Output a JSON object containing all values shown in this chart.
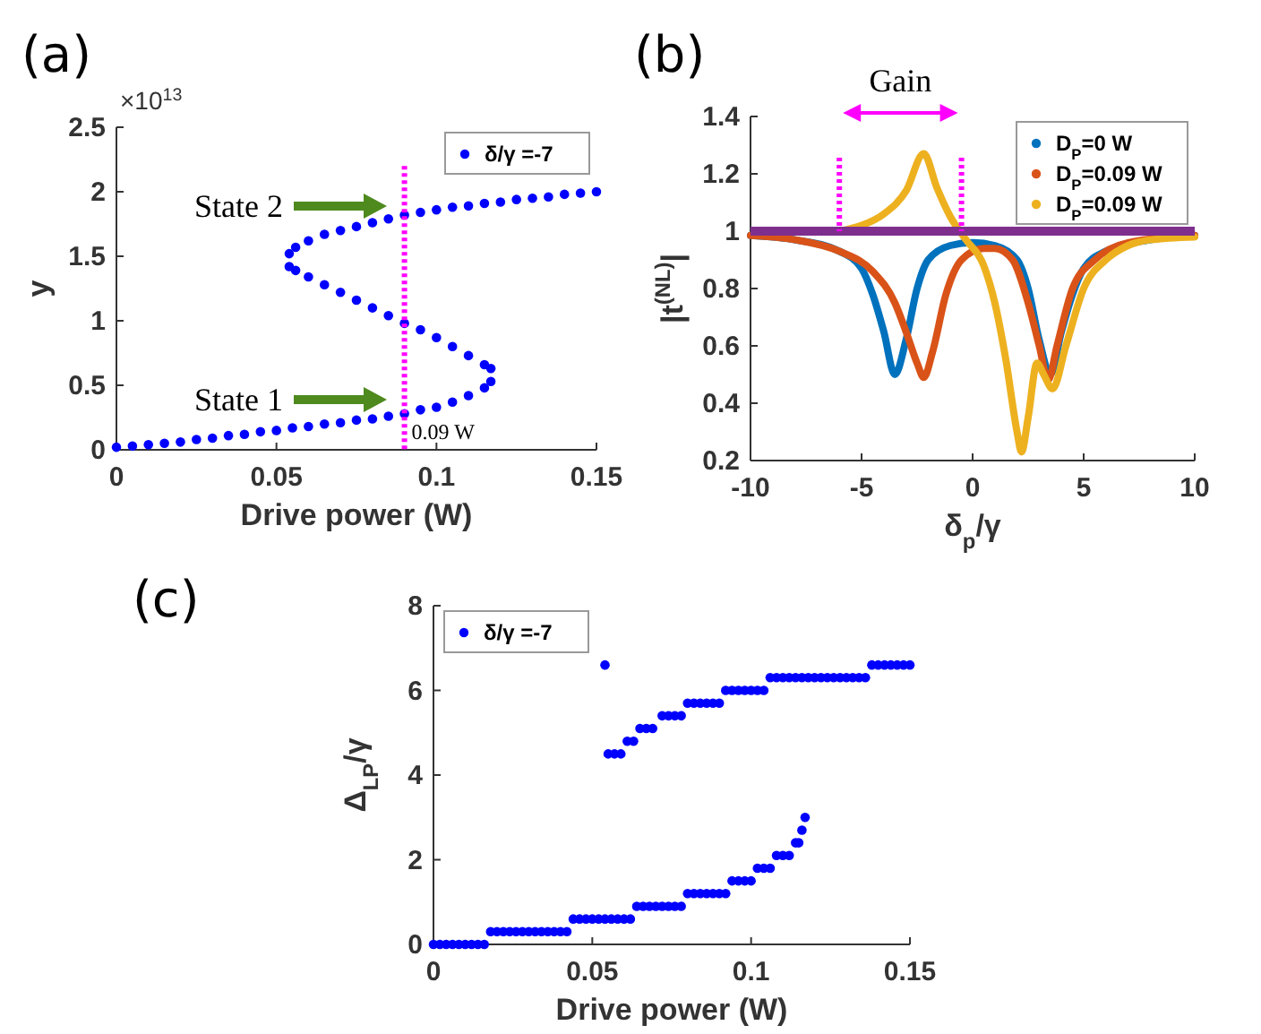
{
  "chart_data": [
    {
      "type": "scatter",
      "title": "(a)",
      "xlabel": "Drive power (W)",
      "ylabel": "y",
      "xlim": [
        0,
        0.15
      ],
      "xticks": [
        0,
        0.05,
        0.1,
        0.15
      ],
      "ylim": [
        0,
        2.5
      ],
      "yticks": [
        0,
        0.5,
        1,
        1.5,
        2,
        2.5
      ],
      "marker": "circle",
      "legend": "top right",
      "series": [
        {
          "name": "δ/γ =-7",
          "color": "#0000ff",
          "x": [
            0,
            0.005,
            0.01,
            0.015,
            0.02,
            0.025,
            0.03,
            0.035,
            0.04,
            0.045,
            0.05,
            0.055,
            0.06,
            0.065,
            0.07,
            0.075,
            0.08,
            0.085,
            0.09,
            0.095,
            0.1,
            0.105,
            0.11,
            0.115,
            0.117,
            0.117,
            0.115,
            0.11,
            0.105,
            0.1,
            0.095,
            0.09,
            0.085,
            0.08,
            0.075,
            0.07,
            0.065,
            0.06,
            0.056,
            0.054,
            0.054,
            0.056,
            0.06,
            0.065,
            0.07,
            0.075,
            0.08,
            0.085,
            0.09,
            0.095,
            0.1,
            0.105,
            0.11,
            0.115,
            0.12,
            0.125,
            0.13,
            0.135,
            0.14,
            0.145,
            0.15
          ],
          "values": [
            0.02,
            0.03,
            0.04,
            0.05,
            0.06,
            0.08,
            0.09,
            0.11,
            0.12,
            0.14,
            0.15,
            0.17,
            0.18,
            0.2,
            0.21,
            0.23,
            0.24,
            0.26,
            0.28,
            0.31,
            0.33,
            0.37,
            0.42,
            0.48,
            0.53,
            0.63,
            0.66,
            0.73,
            0.8,
            0.87,
            0.93,
            0.98,
            1.04,
            1.1,
            1.16,
            1.22,
            1.28,
            1.34,
            1.39,
            1.42,
            1.52,
            1.57,
            1.62,
            1.67,
            1.7,
            1.73,
            1.76,
            1.79,
            1.82,
            1.84,
            1.86,
            1.88,
            1.89,
            1.91,
            1.92,
            1.94,
            1.95,
            1.96,
            1.98,
            1.99,
            2.0
          ]
        }
      ],
      "ref_lines": [
        {
          "axis": "x",
          "value": 0.09,
          "label": "0.09 W",
          "color": "#ff00ff",
          "line_style": "dotted"
        }
      ],
      "annotations": [
        "×10$^{13}$",
        "State 2",
        "State 1"
      ]
    },
    {
      "type": "line",
      "title": "(b)",
      "xlabel": "δ$_{p}$/γ",
      "ylabel": "|t$^{(NL)}$|",
      "xlim": [
        -10,
        10
      ],
      "xticks": [
        -10,
        -5,
        0,
        5,
        10
      ],
      "ylim": [
        0.2,
        1.4
      ],
      "yticks": [
        0.2,
        0.4,
        0.6,
        0.8,
        1,
        1.2,
        1.4
      ],
      "legend": "top right",
      "series": [
        {
          "name": "D$_{P}$=0 W",
          "color": "#0072bd",
          "x": [
            -10,
            -8,
            -6,
            -5,
            -4.5,
            -4,
            -3.5,
            -3,
            -2.5,
            -2,
            -1,
            0,
            1,
            2,
            2.5,
            3,
            3.5,
            4,
            4.5,
            5,
            6,
            8,
            10
          ],
          "values": [
            0.985,
            0.97,
            0.93,
            0.87,
            0.78,
            0.65,
            0.5,
            0.62,
            0.8,
            0.9,
            0.95,
            0.96,
            0.95,
            0.9,
            0.8,
            0.62,
            0.5,
            0.65,
            0.78,
            0.87,
            0.93,
            0.97,
            0.985
          ]
        },
        {
          "name": "D$_{P}$=0.09 W",
          "color": "#d95319",
          "x": [
            -10,
            -8,
            -6,
            -4.5,
            -3.5,
            -3,
            -2.5,
            -2.2,
            -1.8,
            -1.2,
            -0.5,
            0.5,
            1,
            1.8,
            2.5,
            3,
            3.4,
            3.8,
            4.5,
            5.5,
            7,
            10
          ],
          "values": [
            0.985,
            0.97,
            0.93,
            0.86,
            0.75,
            0.65,
            0.54,
            0.49,
            0.58,
            0.78,
            0.9,
            0.94,
            0.94,
            0.9,
            0.75,
            0.6,
            0.48,
            0.6,
            0.8,
            0.9,
            0.96,
            0.985
          ]
        },
        {
          "name": "D$_{P}$=0.09 W",
          "color": "#edb120",
          "x": [
            -6,
            -5,
            -4,
            -3,
            -2.2,
            -1.6,
            -1,
            -0.3,
            0.5,
            1,
            1.5,
            2,
            2.2,
            2.5,
            2.9,
            3.2,
            3.6,
            4.2,
            5,
            6,
            7,
            8,
            10
          ],
          "values": [
            1.0,
            1.02,
            1.06,
            1.14,
            1.27,
            1.15,
            1.05,
            0.97,
            0.88,
            0.75,
            0.55,
            0.3,
            0.23,
            0.35,
            0.54,
            0.5,
            0.45,
            0.6,
            0.8,
            0.9,
            0.95,
            0.97,
            0.98
          ]
        }
      ],
      "ref_lines": [
        {
          "axis": "y",
          "value": 1,
          "color": "#7e2f8e",
          "line_style": "solid"
        },
        {
          "axis": "x",
          "value": -6,
          "color": "#ff00ff",
          "line_style": "dotted"
        },
        {
          "axis": "x",
          "value": -0.5,
          "color": "#ff00ff",
          "line_style": "dotted"
        }
      ],
      "annotations": [
        "Gain"
      ]
    },
    {
      "type": "scatter",
      "title": "(c)",
      "xlabel": "Drive power (W)",
      "ylabel": "Δ$_{LP}$/γ",
      "xlim": [
        0,
        0.15
      ],
      "xticks": [
        0,
        0.05,
        0.1,
        0.15
      ],
      "ylim": [
        0,
        8
      ],
      "yticks": [
        0,
        2,
        4,
        6,
        8
      ],
      "marker": "circle",
      "legend": "top left",
      "series": [
        {
          "name": "δ/γ =-7",
          "color": "#0000ff",
          "x": [
            0,
            0.002,
            0.004,
            0.006,
            0.008,
            0.01,
            0.012,
            0.014,
            0.016,
            0.018,
            0.02,
            0.022,
            0.024,
            0.026,
            0.028,
            0.03,
            0.032,
            0.034,
            0.036,
            0.038,
            0.04,
            0.042,
            0.044,
            0.046,
            0.048,
            0.05,
            0.052,
            0.054,
            0.056,
            0.058,
            0.06,
            0.062,
            0.064,
            0.066,
            0.068,
            0.07,
            0.072,
            0.074,
            0.076,
            0.078,
            0.08,
            0.082,
            0.084,
            0.086,
            0.088,
            0.09,
            0.092,
            0.094,
            0.096,
            0.098,
            0.1,
            0.102,
            0.104,
            0.106,
            0.108,
            0.11,
            0.112,
            0.114,
            0.115,
            0.116,
            0.117,
            0.054,
            0.055,
            0.057,
            0.059,
            0.061,
            0.063,
            0.065,
            0.067,
            0.069,
            0.072,
            0.074,
            0.076,
            0.078,
            0.08,
            0.082,
            0.084,
            0.086,
            0.088,
            0.09,
            0.092,
            0.094,
            0.096,
            0.098,
            0.1,
            0.102,
            0.104,
            0.106,
            0.108,
            0.11,
            0.112,
            0.114,
            0.116,
            0.118,
            0.12,
            0.122,
            0.124,
            0.126,
            0.128,
            0.13,
            0.132,
            0.134,
            0.136,
            0.138,
            0.14,
            0.142,
            0.144,
            0.146,
            0.148,
            0.15
          ],
          "values": [
            0,
            0,
            0,
            0,
            0,
            0,
            0,
            0,
            0,
            0.3,
            0.3,
            0.3,
            0.3,
            0.3,
            0.3,
            0.3,
            0.3,
            0.3,
            0.3,
            0.3,
            0.3,
            0.3,
            0.6,
            0.6,
            0.6,
            0.6,
            0.6,
            0.6,
            0.6,
            0.6,
            0.6,
            0.6,
            0.9,
            0.9,
            0.9,
            0.9,
            0.9,
            0.9,
            0.9,
            0.9,
            1.2,
            1.2,
            1.2,
            1.2,
            1.2,
            1.2,
            1.2,
            1.5,
            1.5,
            1.5,
            1.5,
            1.8,
            1.8,
            1.8,
            2.1,
            2.1,
            2.1,
            2.4,
            2.4,
            2.7,
            3.0,
            6.6,
            4.5,
            4.5,
            4.5,
            4.8,
            4.8,
            5.1,
            5.1,
            5.1,
            5.4,
            5.4,
            5.4,
            5.4,
            5.7,
            5.7,
            5.7,
            5.7,
            5.7,
            5.7,
            6.0,
            6.0,
            6.0,
            6.0,
            6.0,
            6.0,
            6.0,
            6.3,
            6.3,
            6.3,
            6.3,
            6.3,
            6.3,
            6.3,
            6.3,
            6.3,
            6.3,
            6.3,
            6.3,
            6.3,
            6.3,
            6.3,
            6.3,
            6.6,
            6.6,
            6.6,
            6.6,
            6.6,
            6.6,
            6.6
          ]
        }
      ]
    }
  ]
}
